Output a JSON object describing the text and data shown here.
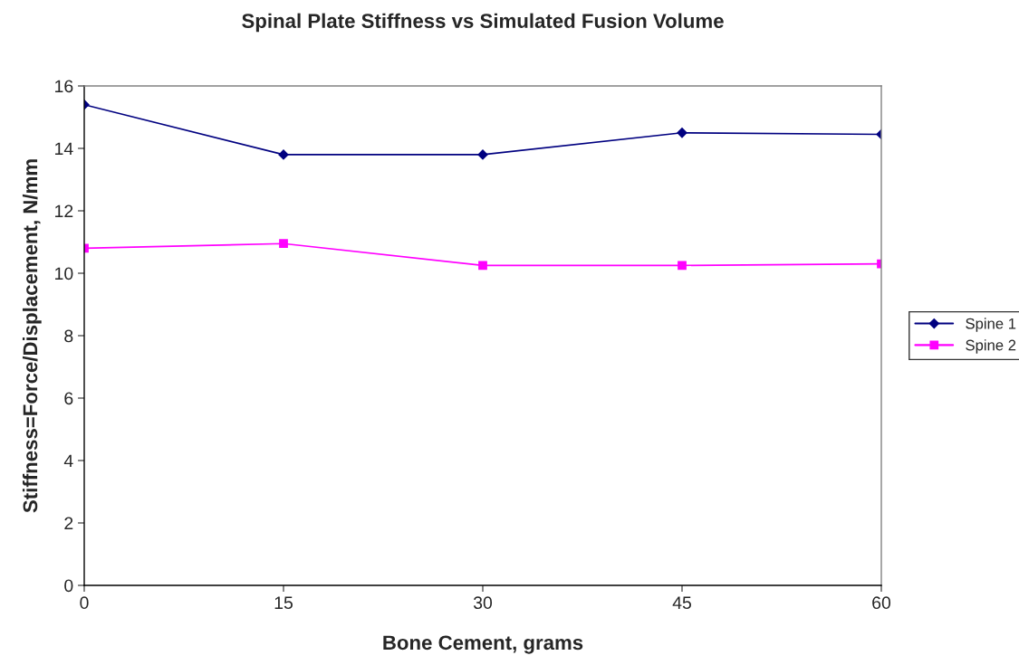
{
  "chart_data": {
    "type": "line",
    "title": "Spinal Plate Stiffness vs Simulated Fusion Volume",
    "xlabel": "Bone Cement, grams",
    "ylabel": "Stiffness=Force/Displacement, N/mm",
    "x": [
      0,
      15,
      30,
      45,
      60
    ],
    "series": [
      {
        "name": "Spine 1",
        "color": "#000080",
        "marker": "diamond",
        "values": [
          15.4,
          13.8,
          13.8,
          14.5,
          14.45
        ]
      },
      {
        "name": "Spine 2",
        "color": "#ff00ff",
        "marker": "square",
        "values": [
          10.8,
          10.95,
          10.25,
          10.25,
          10.3
        ]
      }
    ],
    "xlim": [
      0,
      60
    ],
    "xticks": [
      0,
      15,
      30,
      45,
      60
    ],
    "ylim": [
      0,
      16
    ],
    "yticks": [
      0,
      2,
      4,
      6,
      8,
      10,
      12,
      14,
      16
    ],
    "grid": false,
    "legend": "right",
    "line_style": "solid"
  }
}
